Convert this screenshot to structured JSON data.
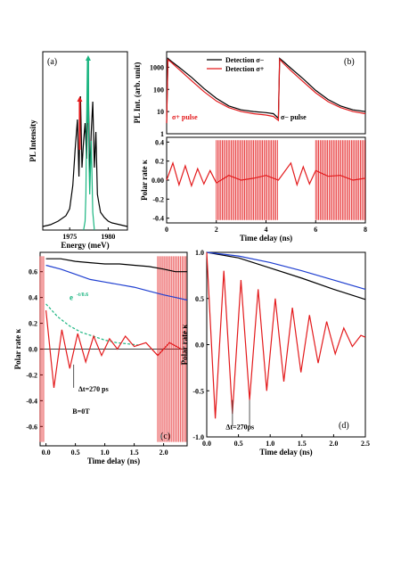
{
  "chart_data": [
    {
      "panel": "(a)",
      "type": "line",
      "xlabel": "Energy (meV)",
      "ylabel": "PL Intensity",
      "xticks": [
        "1975",
        "1980"
      ],
      "xlim": [
        1971.5,
        1982.5
      ],
      "ylim": [
        0,
        1
      ],
      "series": [
        {
          "color": "#000000",
          "x": [
            1971.5,
            1972.5,
            1973.5,
            1974.5,
            1975.0,
            1975.4,
            1975.7,
            1976.0,
            1976.2,
            1976.4,
            1976.6,
            1976.8,
            1977.0,
            1977.2,
            1977.4,
            1977.6,
            1977.8,
            1978.0,
            1978.2,
            1978.4,
            1978.6,
            1978.8,
            1979.0,
            1979.5,
            1980.0,
            1980.5,
            1981.5,
            1982.5
          ],
          "y": [
            0.02,
            0.03,
            0.05,
            0.08,
            0.12,
            0.25,
            0.45,
            0.62,
            0.3,
            0.75,
            0.35,
            0.5,
            0.6,
            0.4,
            0.85,
            0.3,
            0.55,
            0.72,
            0.35,
            0.55,
            0.2,
            0.15,
            0.1,
            0.07,
            0.05,
            0.04,
            0.03,
            0.02
          ]
        },
        {
          "color": "#1ab580",
          "x": [
            1976.8,
            1977.0,
            1977.1,
            1977.2,
            1977.3,
            1977.4,
            1977.5,
            1977.6,
            1977.8,
            1978.0,
            1978.1,
            1978.2
          ],
          "y": [
            0.0,
            0.05,
            0.2,
            0.6,
            0.95,
            0.85,
            0.4,
            0.2,
            0.5,
            0.1,
            0.05,
            0.0
          ]
        }
      ],
      "arrows": [
        {
          "color": "#e31a1c",
          "x": 1976.3,
          "y_from": 0.45,
          "y_to": 0.75
        },
        {
          "color": "#1ab580",
          "x": 1977.4,
          "y_from": 0.6,
          "y_to": 0.98
        }
      ]
    },
    {
      "panel": "(b)",
      "type": "line",
      "ylabel": "PL Int. (arb. unit)",
      "yscale": "log",
      "ylim": [
        1,
        5000
      ],
      "yticks": [
        "1",
        "10",
        "100",
        "1000"
      ],
      "xlim": [
        0,
        8
      ],
      "legend": [
        "Detection  σ−",
        "Detection  σ+"
      ],
      "annotations": [
        "σ+ pulse",
        "σ− pulse"
      ],
      "series": [
        {
          "name": "Detection  σ−",
          "color": "#000000",
          "x": [
            0,
            0.05,
            0.2,
            0.5,
            1,
            1.5,
            2,
            2.5,
            3,
            3.5,
            4,
            4.3,
            4.5,
            4.55,
            4.7,
            5,
            5.5,
            6,
            6.5,
            7,
            7.5,
            8
          ],
          "y": [
            3,
            2500,
            1800,
            1000,
            350,
            110,
            40,
            18,
            12,
            10,
            9,
            8,
            5,
            2500,
            1800,
            900,
            300,
            90,
            35,
            18,
            12,
            10
          ]
        },
        {
          "name": "Detection  σ+",
          "color": "#e31a1c",
          "x": [
            0,
            0.05,
            0.2,
            0.5,
            1,
            1.5,
            2,
            2.5,
            3,
            3.5,
            4,
            4.3,
            4.5,
            4.55,
            4.7,
            5,
            5.5,
            6,
            6.5,
            7,
            7.5,
            8
          ],
          "y": [
            3,
            2200,
            1600,
            800,
            250,
            80,
            30,
            15,
            10,
            8,
            7,
            6,
            4,
            2300,
            1500,
            700,
            220,
            70,
            28,
            15,
            10,
            8
          ]
        }
      ]
    },
    {
      "panel": "(b) lower",
      "type": "line",
      "xlabel": "Time delay (ns)",
      "ylabel": "Polar rate κ",
      "xlim": [
        0,
        8
      ],
      "ylim": [
        -0.45,
        0.45
      ],
      "xticks": [
        "0",
        "2",
        "4",
        "6",
        "8"
      ],
      "yticks": [
        "-0.4",
        "-0.2",
        "0.00",
        "0.2",
        "0.4"
      ],
      "series": [
        {
          "color": "#e31a1c",
          "x": [
            0,
            0.25,
            0.5,
            0.75,
            1,
            1.25,
            1.5,
            1.75,
            2,
            2.5,
            3,
            3.5,
            4,
            4.5,
            5,
            5.25,
            5.5,
            5.75,
            6,
            6.5,
            7,
            7.5,
            8
          ],
          "y": [
            0,
            0.18,
            -0.05,
            0.15,
            -0.06,
            0.12,
            -0.04,
            0.1,
            -0.03,
            0.05,
            0.0,
            0.02,
            0.05,
            0.0,
            0.18,
            -0.05,
            0.14,
            -0.04,
            0.1,
            0.04,
            0.05,
            0.0,
            0.02
          ]
        }
      ]
    },
    {
      "panel": "(c)",
      "type": "line",
      "xlabel": "Time delay (ns)",
      "ylabel": "Polar rate κ",
      "xlim": [
        -0.1,
        2.4
      ],
      "ylim": [
        -0.75,
        0.75
      ],
      "xticks": [
        "0.0",
        "0.5",
        "1.0",
        "1.5",
        "2.0"
      ],
      "yticks": [
        "-0.6",
        "-0.4",
        "-0.2",
        "0.0",
        "0.2",
        "0.4",
        "0.6"
      ],
      "annotations": [
        "Δt=270 ps",
        "B=0T",
        "e",
        "-t/0.6"
      ],
      "series": [
        {
          "color": "#000000",
          "x": [
            0,
            0.25,
            0.5,
            0.75,
            1,
            1.25,
            1.5,
            1.75,
            2,
            2.2,
            2.4
          ],
          "y": [
            0.7,
            0.7,
            0.68,
            0.67,
            0.66,
            0.66,
            0.65,
            0.64,
            0.62,
            0.6,
            0.6
          ]
        },
        {
          "color": "#1f3fd0",
          "x": [
            0,
            0.25,
            0.5,
            0.75,
            1,
            1.25,
            1.5,
            1.75,
            2,
            2.2,
            2.4
          ],
          "y": [
            0.65,
            0.62,
            0.58,
            0.54,
            0.52,
            0.5,
            0.48,
            0.45,
            0.42,
            0.4,
            0.38
          ]
        },
        {
          "color": "#1ab580",
          "x": [
            0,
            0.2,
            0.4,
            0.6,
            0.8,
            1.0,
            1.2,
            1.4,
            1.6
          ],
          "y": [
            0.35,
            0.25,
            0.18,
            0.13,
            0.1,
            0.07,
            0.05,
            0.04,
            0.03
          ]
        },
        {
          "color": "#e31a1c",
          "x": [
            0,
            0.135,
            0.27,
            0.405,
            0.54,
            0.675,
            0.81,
            0.945,
            1.08,
            1.215,
            1.35,
            1.5,
            1.7,
            1.9,
            2.1,
            2.3
          ],
          "y": [
            0.3,
            -0.3,
            0.15,
            -0.15,
            0.12,
            -0.1,
            0.1,
            -0.05,
            0.08,
            0.0,
            0.1,
            0.02,
            0.05,
            -0.05,
            0.05,
            0.0
          ]
        }
      ]
    },
    {
      "panel": "(d)",
      "type": "line",
      "xlabel": "Time delay (ns)",
      "ylabel": "Polar rate κ",
      "xlim": [
        0,
        2.5
      ],
      "ylim": [
        -1.0,
        1.0
      ],
      "xticks": [
        "0.0",
        "0.5",
        "1.0",
        "1.5",
        "2.0",
        "2.5"
      ],
      "yticks": [
        "-1.0",
        "-0.5",
        "0.0",
        "0.5",
        "1.0"
      ],
      "annotations": [
        "Δt=270ps"
      ],
      "series": [
        {
          "color": "#000000",
          "x": [
            0,
            0.5,
            1,
            1.5,
            2,
            2.5
          ],
          "y": [
            1.0,
            0.94,
            0.83,
            0.72,
            0.6,
            0.49
          ]
        },
        {
          "color": "#1f3fd0",
          "x": [
            0,
            0.5,
            1,
            1.5,
            2,
            2.5
          ],
          "y": [
            1.0,
            0.96,
            0.89,
            0.8,
            0.7,
            0.6
          ]
        },
        {
          "color": "#e31a1c",
          "x": [
            0,
            0.135,
            0.27,
            0.405,
            0.54,
            0.675,
            0.81,
            0.945,
            1.08,
            1.215,
            1.35,
            1.485,
            1.62,
            1.755,
            1.89,
            2.025,
            2.16,
            2.295,
            2.43,
            2.5
          ],
          "y": [
            1.0,
            -0.8,
            0.8,
            -0.75,
            0.7,
            -0.6,
            0.6,
            -0.5,
            0.5,
            -0.4,
            0.4,
            -0.3,
            0.32,
            -0.2,
            0.25,
            -0.1,
            0.18,
            -0.02,
            0.1,
            0.08
          ]
        }
      ]
    }
  ]
}
